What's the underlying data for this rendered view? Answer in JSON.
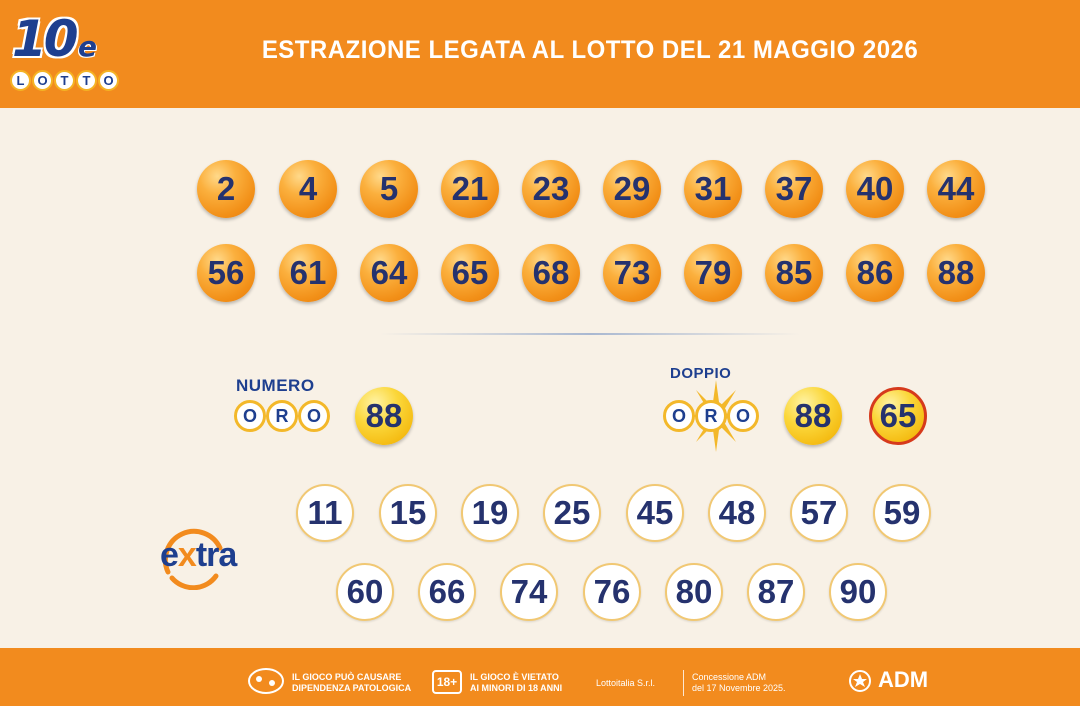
{
  "header": {
    "logo": {
      "ten": "10",
      "e": "e",
      "lotto": [
        "L",
        "O",
        "T",
        "T",
        "O"
      ]
    },
    "title": "ESTRAZIONE LEGATA AL LOTTO DEL 21 MAGGIO 2026"
  },
  "winning_numbers": {
    "row1": [
      "2",
      "4",
      "5",
      "21",
      "23",
      "29",
      "31",
      "37",
      "40",
      "44"
    ],
    "row2": [
      "56",
      "61",
      "64",
      "65",
      "68",
      "73",
      "79",
      "85",
      "86",
      "88"
    ]
  },
  "numero_oro": {
    "label": "NUMERO",
    "oro_letters": [
      "O",
      "R",
      "O"
    ],
    "value": "88"
  },
  "doppio_oro": {
    "label": "DOPPIO",
    "oro_letters": [
      "O",
      "R",
      "O"
    ],
    "values": [
      "88",
      "65"
    ]
  },
  "extra": {
    "logo_e": "e",
    "logo_x": "x",
    "logo_rest": "tra",
    "row1": [
      "11",
      "15",
      "19",
      "25",
      "45",
      "48",
      "57",
      "59"
    ],
    "row2": [
      "60",
      "66",
      "74",
      "76",
      "80",
      "87",
      "90"
    ]
  },
  "footer": {
    "warning_line1": "IL GIOCO PUÒ CAUSARE",
    "warning_line2": "DIPENDENZA PATOLOGICA",
    "age_badge": "18+",
    "minors_line1": "IL GIOCO È VIETATO",
    "minors_line2": "AI MINORI DI 18 ANNI",
    "company": "Lottoitalia S.r.l.",
    "concession_line1": "Concessione ADM",
    "concession_line2": "del 17 Novembre 2025.",
    "adm": "ADM"
  },
  "colors": {
    "orange": "#f28b1e",
    "navy": "#25326e",
    "gold": "#f4b90f",
    "background": "#f8f1e6"
  }
}
